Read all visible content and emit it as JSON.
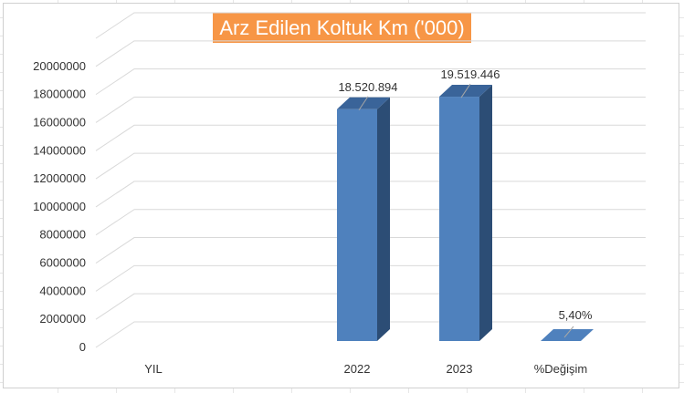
{
  "chart_data": {
    "type": "bar",
    "title": "Arz Edilen Koltuk Km ('000)",
    "categories": [
      "YIL",
      "2022",
      "2023",
      "%Değişim"
    ],
    "values": [
      null,
      18520894,
      19519446,
      5.4
    ],
    "data_labels": [
      "",
      "18.520.894",
      "19.519.446",
      "5,40%"
    ],
    "y_ticks": [
      "0",
      "2000000",
      "4000000",
      "6000000",
      "8000000",
      "10000000",
      "12000000",
      "14000000",
      "16000000",
      "18000000",
      "20000000"
    ],
    "ylim": [
      0,
      22000000
    ],
    "grid": true,
    "style": "3d-column",
    "colors": {
      "bar_front": "#4f81bd",
      "bar_side": "#2c4d75",
      "bar_top": "#3a6499",
      "title_bg": "#f79646",
      "title_text": "#ffffff",
      "grid": "#d9d9d9"
    }
  }
}
